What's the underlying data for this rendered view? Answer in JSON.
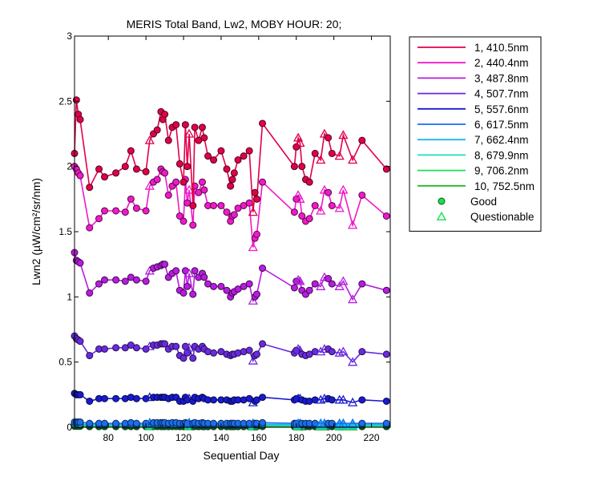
{
  "chart_data": {
    "type": "line",
    "title": "MERIS Total Band, Lw2, MOBY HOUR: 20;",
    "xlabel": "Sequential Day",
    "ylabel": "Lwn2 (µW/cm²/sr/nm)",
    "xlim": [
      62,
      230
    ],
    "ylim": [
      0,
      3
    ],
    "xticks": [
      80,
      100,
      120,
      140,
      160,
      180,
      200,
      220
    ],
    "yticks": [
      0,
      0.5,
      1,
      1.5,
      2,
      2.5,
      3
    ],
    "ytick_labels": [
      "0",
      "0.5",
      "1",
      "1.5",
      "2",
      "2.5",
      "3"
    ],
    "grid": false,
    "legend_position": "outside-right",
    "x": [
      62,
      63,
      64,
      65,
      70,
      75,
      78,
      84,
      89,
      92,
      95,
      100,
      102,
      104,
      106,
      108,
      109,
      110,
      112,
      114,
      116,
      118,
      120,
      121,
      122,
      123,
      125,
      126,
      128,
      130,
      131,
      133,
      136,
      140,
      143,
      145,
      146,
      147,
      149,
      152,
      155,
      157,
      158,
      159,
      162,
      179,
      180,
      181,
      182,
      183,
      185,
      187,
      190,
      193,
      195,
      197,
      199,
      203,
      205,
      210,
      215,
      228
    ],
    "quality": [
      "G",
      "G",
      "G",
      "G",
      "G",
      "G",
      "G",
      "G",
      "G",
      "G",
      "G",
      "G",
      "Q",
      "G",
      "G",
      "G",
      "G",
      "G",
      "G",
      "G",
      "G",
      "G",
      "G",
      "G",
      "G",
      "Q",
      "G",
      "G",
      "G",
      "G",
      "G",
      "G",
      "G",
      "G",
      "G",
      "G",
      "G",
      "G",
      "G",
      "G",
      "G",
      "Q",
      "G",
      "G",
      "G",
      "G",
      "G",
      "Q",
      "Q",
      "G",
      "G",
      "G",
      "G",
      "Q",
      "Q",
      "G",
      "G",
      "Q",
      "Q",
      "Q",
      "G",
      "G"
    ],
    "series": [
      {
        "name": "1, 410.5nm",
        "color": "#e0004a",
        "values": [
          2.1,
          2.51,
          2.4,
          2.36,
          1.84,
          1.98,
          1.92,
          1.95,
          2.0,
          2.12,
          1.98,
          1.96,
          2.2,
          2.25,
          2.28,
          2.42,
          2.36,
          2.4,
          2.2,
          2.3,
          2.32,
          2.02,
          1.88,
          2.32,
          2.0,
          2.25,
          1.7,
          2.3,
          2.2,
          2.3,
          2.22,
          2.08,
          2.05,
          2.12,
          1.98,
          1.85,
          1.9,
          1.95,
          2.05,
          2.08,
          2.12,
          1.65,
          1.8,
          1.75,
          2.33,
          2.0,
          2.15,
          2.22,
          2.18,
          2.0,
          1.9,
          1.88,
          2.1,
          2.05,
          2.25,
          2.22,
          2.1,
          2.08,
          2.24,
          2.05,
          2.2,
          1.98
        ]
      },
      {
        "name": "2, 440.4nm",
        "color": "#f019c8",
        "values": [
          2.0,
          1.98,
          1.95,
          1.93,
          1.53,
          1.6,
          1.66,
          1.66,
          1.65,
          1.75,
          1.68,
          1.66,
          1.85,
          1.88,
          1.9,
          1.98,
          1.96,
          1.95,
          1.78,
          1.85,
          1.88,
          1.62,
          1.58,
          1.9,
          1.72,
          1.82,
          1.55,
          1.85,
          1.8,
          1.88,
          1.82,
          1.7,
          1.7,
          1.7,
          1.65,
          1.58,
          1.62,
          1.63,
          1.68,
          1.7,
          1.72,
          1.38,
          1.45,
          1.48,
          1.88,
          1.65,
          1.75,
          1.78,
          1.75,
          1.62,
          1.58,
          1.6,
          1.7,
          1.66,
          1.82,
          1.8,
          1.7,
          1.68,
          1.82,
          1.55,
          1.78,
          1.62
        ]
      },
      {
        "name": "3, 487.8nm",
        "color": "#b81ce0",
        "values": [
          1.34,
          1.28,
          1.27,
          1.26,
          1.03,
          1.1,
          1.13,
          1.13,
          1.12,
          1.15,
          1.13,
          1.12,
          1.2,
          1.22,
          1.23,
          1.24,
          1.25,
          1.25,
          1.15,
          1.18,
          1.2,
          1.05,
          1.03,
          1.2,
          1.08,
          1.18,
          1.02,
          1.2,
          1.15,
          1.18,
          1.15,
          1.1,
          1.08,
          1.08,
          1.05,
          1.0,
          1.03,
          1.04,
          1.06,
          1.08,
          1.1,
          0.97,
          1.0,
          1.02,
          1.22,
          1.07,
          1.12,
          1.13,
          1.12,
          1.05,
          1.02,
          1.05,
          1.1,
          1.08,
          1.15,
          1.14,
          1.1,
          1.08,
          1.12,
          0.98,
          1.1,
          1.05
        ]
      },
      {
        "name": "4, 507.7nm",
        "color": "#6a2ae0",
        "values": [
          0.7,
          0.68,
          0.67,
          0.66,
          0.55,
          0.6,
          0.6,
          0.61,
          0.61,
          0.63,
          0.61,
          0.6,
          0.62,
          0.63,
          0.63,
          0.64,
          0.64,
          0.64,
          0.6,
          0.62,
          0.62,
          0.55,
          0.53,
          0.62,
          0.57,
          0.61,
          0.53,
          0.62,
          0.6,
          0.62,
          0.6,
          0.58,
          0.57,
          0.58,
          0.56,
          0.55,
          0.56,
          0.56,
          0.57,
          0.58,
          0.59,
          0.51,
          0.55,
          0.56,
          0.64,
          0.57,
          0.59,
          0.6,
          0.59,
          0.56,
          0.55,
          0.56,
          0.58,
          0.58,
          0.6,
          0.6,
          0.58,
          0.57,
          0.58,
          0.5,
          0.58,
          0.56
        ]
      },
      {
        "name": "5, 557.6nm",
        "color": "#1a1ad0",
        "values": [
          0.26,
          0.25,
          0.25,
          0.25,
          0.2,
          0.22,
          0.22,
          0.22,
          0.22,
          0.23,
          0.22,
          0.22,
          0.23,
          0.23,
          0.23,
          0.23,
          0.23,
          0.23,
          0.22,
          0.23,
          0.23,
          0.2,
          0.2,
          0.23,
          0.21,
          0.22,
          0.2,
          0.23,
          0.22,
          0.23,
          0.22,
          0.21,
          0.21,
          0.21,
          0.21,
          0.2,
          0.2,
          0.21,
          0.21,
          0.21,
          0.22,
          0.19,
          0.2,
          0.21,
          0.23,
          0.21,
          0.22,
          0.22,
          0.22,
          0.21,
          0.2,
          0.2,
          0.21,
          0.21,
          0.22,
          0.22,
          0.21,
          0.21,
          0.21,
          0.19,
          0.21,
          0.2
        ]
      },
      {
        "name": "6, 617.5nm",
        "color": "#1a6ef0",
        "values": [
          0.04,
          0.04,
          0.04,
          0.04,
          0.03,
          0.03,
          0.03,
          0.03,
          0.03,
          0.035,
          0.03,
          0.03,
          0.035,
          0.035,
          0.035,
          0.035,
          0.035,
          0.035,
          0.03,
          0.035,
          0.035,
          0.03,
          0.03,
          0.035,
          0.03,
          0.035,
          0.03,
          0.035,
          0.03,
          0.035,
          0.03,
          0.03,
          0.03,
          0.03,
          0.03,
          0.03,
          0.03,
          0.03,
          0.03,
          0.03,
          0.03,
          0.03,
          0.03,
          0.03,
          0.035,
          0.03,
          0.03,
          0.03,
          0.03,
          0.03,
          0.03,
          0.03,
          0.03,
          0.03,
          0.03,
          0.03,
          0.03,
          0.03,
          0.03,
          0.03,
          0.03,
          0.03
        ]
      },
      {
        "name": "7, 662.4nm",
        "color": "#1ab8f0",
        "values": [
          0.025,
          0.025,
          0.025,
          0.025,
          0.02,
          0.02,
          0.02,
          0.02,
          0.02,
          0.022,
          0.02,
          0.02,
          0.022,
          0.022,
          0.022,
          0.022,
          0.022,
          0.022,
          0.02,
          0.022,
          0.022,
          0.02,
          0.02,
          0.022,
          0.02,
          0.022,
          0.02,
          0.022,
          0.02,
          0.022,
          0.02,
          0.02,
          0.02,
          0.02,
          0.02,
          0.02,
          0.02,
          0.02,
          0.02,
          0.02,
          0.02,
          0.02,
          0.02,
          0.02,
          0.022,
          0.02,
          0.02,
          0.02,
          0.02,
          0.02,
          0.02,
          0.02,
          0.02,
          0.02,
          0.02,
          0.02,
          0.02,
          0.02,
          0.02,
          0.02,
          0.02,
          0.02
        ]
      },
      {
        "name": "8, 679.9nm",
        "color": "#1ae0c0",
        "values": [
          0.02,
          0.02,
          0.02,
          0.02,
          0.015,
          0.015,
          0.015,
          0.015,
          0.015,
          0.017,
          0.015,
          0.015,
          0.017,
          0.017,
          0.017,
          0.017,
          0.017,
          0.017,
          0.015,
          0.017,
          0.017,
          0.015,
          0.015,
          0.017,
          0.015,
          0.017,
          0.015,
          0.017,
          0.015,
          0.017,
          0.015,
          0.015,
          0.015,
          0.015,
          0.015,
          0.015,
          0.015,
          0.015,
          0.015,
          0.015,
          0.015,
          0.015,
          0.015,
          0.015,
          0.017,
          0.015,
          0.015,
          0.015,
          0.015,
          0.015,
          0.015,
          0.015,
          0.015,
          0.015,
          0.015,
          0.015,
          0.015,
          0.015,
          0.015,
          0.015,
          0.015,
          0.015
        ]
      },
      {
        "name": "9, 706.2nm",
        "color": "#1ae050",
        "values": [
          0.015,
          0.015,
          0.015,
          0.015,
          0.01,
          0.01,
          0.01,
          0.01,
          0.01,
          0.012,
          0.01,
          0.01,
          0.012,
          0.012,
          0.012,
          0.012,
          0.012,
          0.012,
          0.01,
          0.012,
          0.012,
          0.01,
          0.01,
          0.012,
          0.01,
          0.012,
          0.01,
          0.012,
          0.01,
          0.012,
          0.01,
          0.01,
          0.01,
          0.01,
          0.01,
          0.01,
          0.01,
          0.01,
          0.01,
          0.01,
          0.01,
          0.01,
          0.01,
          0.01,
          0.012,
          0.01,
          0.01,
          0.01,
          0.01,
          0.01,
          0.01,
          0.01,
          0.01,
          0.01,
          0.01,
          0.01,
          0.01,
          0.01,
          0.01,
          0.01,
          0.01,
          0.01
        ]
      },
      {
        "name": "10, 752.5nm",
        "color": "#2ab82a",
        "values": [
          0.008,
          0.008,
          0.008,
          0.008,
          0.005,
          0.005,
          0.005,
          0.005,
          0.005,
          0.006,
          0.005,
          0.005,
          0.006,
          0.006,
          0.006,
          0.006,
          0.006,
          0.006,
          0.005,
          0.006,
          0.006,
          0.005,
          0.005,
          0.006,
          0.005,
          0.006,
          0.005,
          0.006,
          0.005,
          0.006,
          0.005,
          0.005,
          0.005,
          0.005,
          0.005,
          0.005,
          0.005,
          0.005,
          0.005,
          0.005,
          0.005,
          0.005,
          0.005,
          0.005,
          0.006,
          0.005,
          0.005,
          0.005,
          0.005,
          0.005,
          0.005,
          0.005,
          0.005,
          0.005,
          0.005,
          0.005,
          0.005,
          0.005,
          0.005,
          0.005,
          0.005,
          0.005
        ]
      }
    ],
    "marker_legend": [
      {
        "name": "Good",
        "marker": "circle",
        "color": "#1ae050"
      },
      {
        "name": "Questionable",
        "marker": "triangle",
        "color": "#1ae050"
      }
    ]
  }
}
